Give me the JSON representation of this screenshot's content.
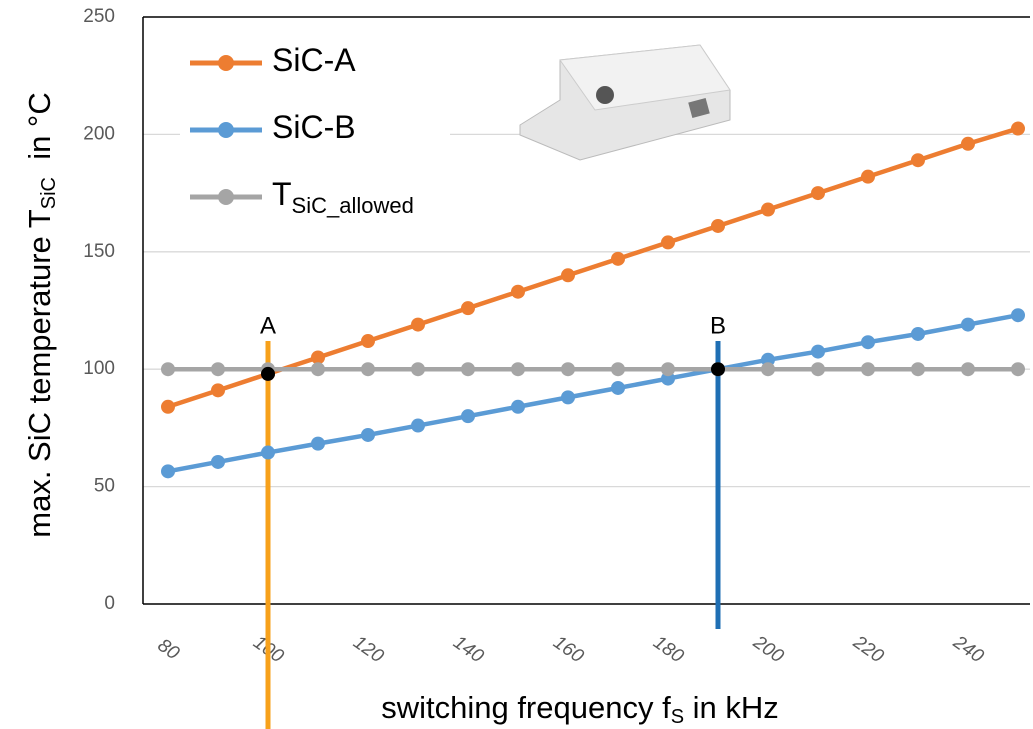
{
  "chart_data": {
    "type": "line",
    "x": [
      80,
      90,
      100,
      110,
      120,
      130,
      140,
      150,
      160,
      170,
      180,
      190,
      200,
      210,
      220,
      230,
      240,
      250
    ],
    "xlim": [
      75,
      252.4
    ],
    "xticks": [
      80,
      100,
      120,
      140,
      160,
      180,
      200,
      220,
      240
    ],
    "ylim": [
      0,
      250
    ],
    "yticks": [
      0,
      50,
      100,
      150,
      200,
      250
    ],
    "grid": true,
    "x_label": {
      "text": "switching frequency f",
      "sub": "S",
      "rest": " in kHz"
    },
    "y_label": {
      "text": "max. SiC temperature T",
      "sub": "SiC",
      "rest": "  in °C"
    },
    "series": [
      {
        "name": "SiC-A",
        "color": "#ED7D31",
        "values": [
          84,
          91,
          98,
          105,
          112,
          119,
          126,
          133,
          140,
          147,
          154,
          161,
          168,
          175,
          182,
          189,
          196,
          202.5
        ]
      },
      {
        "name": "SiC-B",
        "color": "#5B9BD5",
        "values": [
          56.5,
          60.5,
          64.5,
          68.3,
          72,
          76,
          80,
          84,
          88,
          92,
          96,
          100,
          104,
          107.5,
          111.5,
          115,
          119,
          123
        ]
      },
      {
        "name": "T",
        "name_sub": "SiC_allowed",
        "color": "#A5A5A5",
        "values": [
          100,
          100,
          100,
          100,
          100,
          100,
          100,
          100,
          100,
          100,
          100,
          100,
          100,
          100,
          100,
          100,
          100,
          100
        ]
      }
    ],
    "annotations": [
      {
        "label": "A",
        "x": 100,
        "y": 98,
        "color": "#F7A11B"
      },
      {
        "label": "B",
        "x": 190,
        "y": 100,
        "color": "#1F6FB4"
      }
    ]
  }
}
